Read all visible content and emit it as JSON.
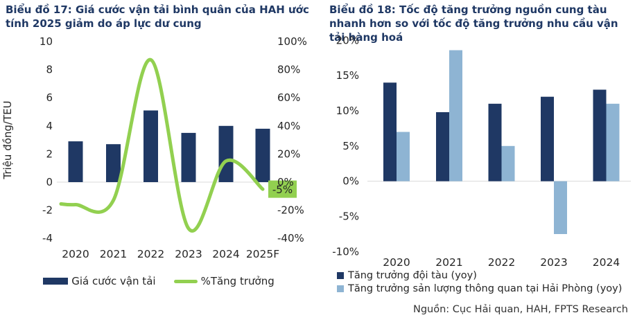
{
  "colors": {
    "navy": "#1f3864",
    "light_blue": "#8eb4d3",
    "green": "#92d050",
    "gridline": "#d9d9d9",
    "text_dark": "#262626",
    "title_navy": "#1f3864"
  },
  "source_note": "Nguồn: Cục Hải quan, HAH, FPTS Research",
  "chart_data": [
    {
      "id": "chart17",
      "type": "bar",
      "subtype": "bar-with-line-overlay",
      "title": "Biểu đồ 17: Giá cước vận tải bình quân của HAH ước tính 2025 giảm do áp lực dư cung",
      "categories": [
        "2020",
        "2021",
        "2022",
        "2023",
        "2024",
        "2025F"
      ],
      "series": [
        {
          "name": "Giá cước vận tải",
          "type": "bar",
          "axis": "left",
          "color": "#1f3864",
          "values": [
            2.9,
            2.7,
            5.1,
            3.5,
            4.0,
            3.8
          ]
        },
        {
          "name": "%Tăng trưởng",
          "type": "line",
          "axis": "right",
          "color": "#92d050",
          "values": [
            -16,
            -13,
            87,
            -33,
            15,
            -5
          ]
        }
      ],
      "left_axis": {
        "label": "Triệu đồng/TEU",
        "min": -4,
        "max": 10,
        "ticks": [
          10,
          8,
          6,
          4,
          2,
          0,
          -2,
          -4
        ]
      },
      "right_axis": {
        "min": -40,
        "max": 100,
        "tick_labels": [
          "100%",
          "80%",
          "60%",
          "40%",
          "20%",
          "0%",
          "-20%",
          "-40%"
        ],
        "tick_values": [
          100,
          80,
          60,
          40,
          20,
          0,
          -20,
          -40
        ]
      },
      "annotation": {
        "text": "-5%",
        "background": "#92d050"
      },
      "grid": "zero-line-only",
      "legend_position": "bottom-center"
    },
    {
      "id": "chart18",
      "type": "bar",
      "subtype": "grouped-bars",
      "title": "Biểu đồ 18: Tốc độ tăng trưởng nguồn cung tàu nhanh hơn so với tốc độ tăng trưởng nhu cầu vận tải hàng hoá",
      "categories": [
        "2020",
        "2021",
        "2022",
        "2023",
        "2024"
      ],
      "series": [
        {
          "name": "Tăng trưởng đội tàu (yoy)",
          "color": "#1f3864",
          "values": [
            14,
            9.8,
            11,
            12,
            13
          ]
        },
        {
          "name": "Tăng trưởng sản lượng thông quan tại Hải Phòng (yoy)",
          "color": "#8eb4d3",
          "values": [
            7,
            18.6,
            5,
            -7.5,
            11
          ]
        }
      ],
      "axis": {
        "min": -10,
        "max": 20,
        "tick_labels": [
          "20%",
          "15%",
          "10%",
          "5%",
          "0%",
          "-5%",
          "-10%"
        ],
        "tick_values": [
          20,
          15,
          10,
          5,
          0,
          -5,
          -10
        ]
      },
      "grid": "zero-line-only",
      "legend_position": "bottom-left"
    }
  ]
}
